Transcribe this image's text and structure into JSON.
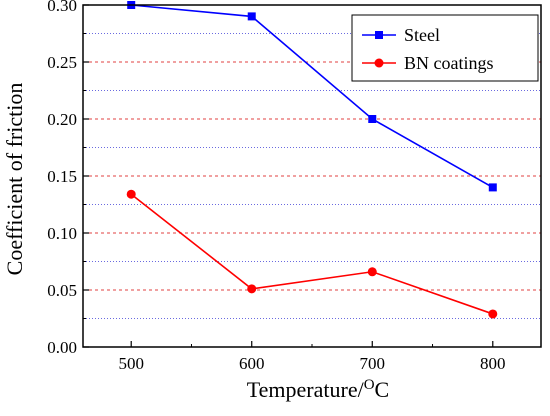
{
  "chart_data": {
    "type": "line",
    "xlabel": "Temperature/",
    "xlabel_unit": "C",
    "xlabel_superscript": "O",
    "ylabel": "Coefficient of friction",
    "x": [
      500,
      600,
      700,
      800
    ],
    "x_ticks": [
      "500",
      "600",
      "700",
      "800"
    ],
    "xlim": [
      460,
      840
    ],
    "ylim": [
      0.0,
      0.3
    ],
    "y_ticks": [
      "0.00",
      "0.05",
      "0.10",
      "0.15",
      "0.20",
      "0.25",
      "0.30"
    ],
    "grid": {
      "major": {
        "on": true,
        "color": "#e04040",
        "style": "dashed"
      },
      "minor": {
        "on": true,
        "color": "#6a6ae0",
        "style": "dotted"
      }
    },
    "legend": {
      "position": "top-right"
    },
    "series": [
      {
        "name": "Steel",
        "color": "#0000ff",
        "marker": "square",
        "values": [
          0.3,
          0.29,
          0.2,
          0.14
        ]
      },
      {
        "name": "BN coatings",
        "color": "#ff0000",
        "marker": "circle",
        "values": [
          0.134,
          0.051,
          0.066,
          0.029
        ]
      }
    ]
  }
}
